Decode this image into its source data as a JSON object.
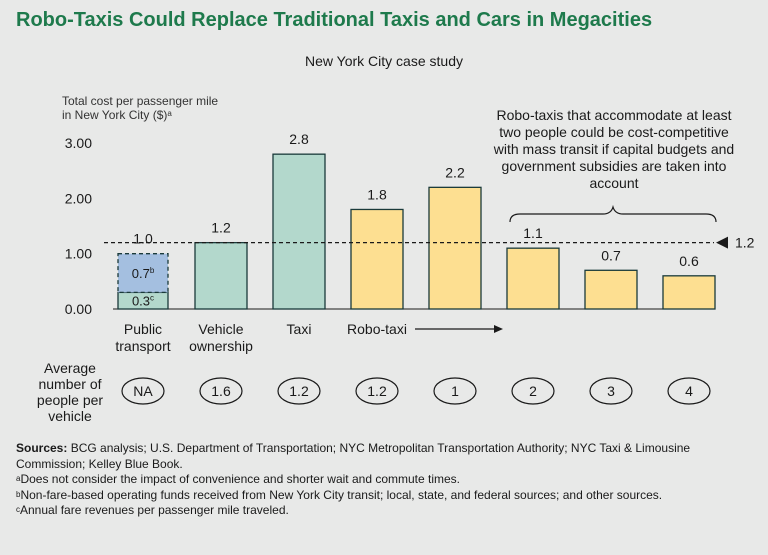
{
  "title": "Robo-Taxis Could Replace Traditional Taxis and Cars in Megacities",
  "subtitle": "New York City case study",
  "y_axis_label": "Total cost per passenger mile\nin New York City ($)",
  "y_axis_label_sup": "a",
  "callout": "Robo-taxis that accommodate at least two people could be cost-competitive with mass transit if capital budgets and government subsidies are taken into account",
  "avg_label": "Average\nnumber of\npeople per\nvehicle",
  "robo_taxi_arrow_label": "Robo-taxi",
  "colors": {
    "title": "#1e7a4c",
    "teal": "#b3d8cc",
    "yellow": "#fddf91",
    "blue": "#a4bfe0",
    "bar_stroke": "#1a3a3a"
  },
  "chart_data": {
    "type": "bar",
    "title": "New York City case study",
    "ylabel": "Total cost per passenger mile in New York City ($)",
    "ylim": [
      0,
      3.0
    ],
    "yticks": [
      "0.00",
      "1.00",
      "2.00",
      "3.00"
    ],
    "reference_line": {
      "value": 1.2,
      "label": "1.2"
    },
    "categories": [
      "Public transport",
      "Vehicle ownership",
      "Taxi",
      "Robo-taxi (1.2)",
      "Robo-taxi (1)",
      "Robo-taxi (2)",
      "Robo-taxi (3)",
      "Robo-taxi (4)"
    ],
    "bars": [
      {
        "label": "Public\ntransport",
        "value": 1.0,
        "value_label": "1.0",
        "color": "teal",
        "occupancy": "NA",
        "stack": [
          {
            "value": 0.3,
            "label": "0.3",
            "sup": "c",
            "color": "teal",
            "dashed": false
          },
          {
            "value": 0.7,
            "label": "0.7",
            "sup": "b",
            "color": "blue",
            "dashed": true
          }
        ]
      },
      {
        "label": "Vehicle\nownership",
        "value": 1.2,
        "value_label": "1.2",
        "color": "teal",
        "occupancy": "1.6"
      },
      {
        "label": "Taxi",
        "value": 2.8,
        "value_label": "2.8",
        "color": "teal",
        "occupancy": "1.2"
      },
      {
        "label": "",
        "value": 1.8,
        "value_label": "1.8",
        "color": "yellow",
        "occupancy": "1.2"
      },
      {
        "label": "",
        "value": 2.2,
        "value_label": "2.2",
        "color": "yellow",
        "occupancy": "1"
      },
      {
        "label": "",
        "value": 1.1,
        "value_label": "1.1",
        "color": "yellow",
        "occupancy": "2"
      },
      {
        "label": "",
        "value": 0.7,
        "value_label": "0.7",
        "color": "yellow",
        "occupancy": "3"
      },
      {
        "label": "",
        "value": 0.6,
        "value_label": "0.6",
        "color": "yellow",
        "occupancy": "4"
      }
    ]
  },
  "sources": {
    "label": "Sources:",
    "text": " BCG analysis; U.S. Department of Transportation; NYC Metropolitan Transportation Authority; NYC Taxi & Limousine Commission; Kelley Blue Book.",
    "notes": [
      {
        "mark": "a",
        "text": "Does not consider the impact of convenience and shorter wait and commute times."
      },
      {
        "mark": "b",
        "text": "Non-fare-based operating funds received from New York City transit; local, state, and federal  sources; and other sources."
      },
      {
        "mark": "c",
        "text": "Annual fare revenues per passenger mile traveled."
      }
    ]
  }
}
